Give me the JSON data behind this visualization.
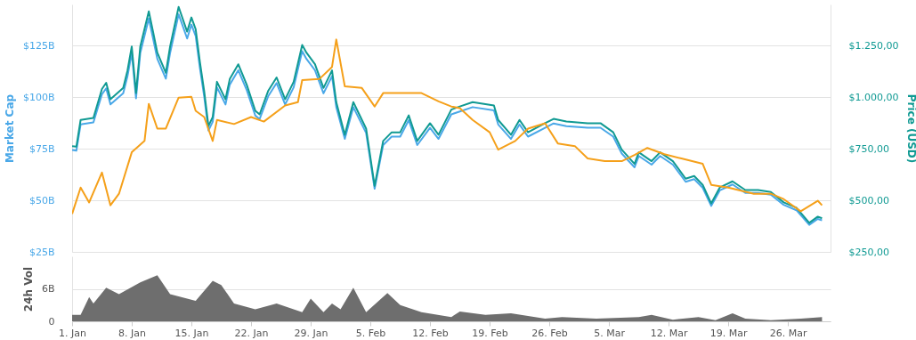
{
  "chart_data": [
    {
      "type": "line",
      "ylabel": "Market Cap",
      "y2label": "Price (USD)",
      "grid": "y",
      "tick_labels": "y",
      "xlim": [
        "--01-01",
        "--03-31"
      ],
      "ylim": [
        25,
        145
      ],
      "yticks": [
        {
          "value": 25,
          "label": "$25B"
        },
        {
          "value": 50,
          "label": "$50B"
        },
        {
          "value": 75,
          "label": "$75B"
        },
        {
          "value": 100,
          "label": "$100B"
        },
        {
          "value": 125,
          "label": "$125B"
        }
      ],
      "y2lim": [
        250,
        1450
      ],
      "y2ticks": [
        {
          "value": 250,
          "label": "$250,00"
        },
        {
          "value": 500,
          "label": "$500,00"
        },
        {
          "value": 750,
          "label": "$750,00"
        },
        {
          "value": 1000,
          "label": "$1.000,00"
        },
        {
          "value": 1250,
          "label": "$1.250,00"
        }
      ],
      "x": [
        "--01-01",
        "--01-01T12:00",
        "--01-02",
        "--01-03T12:00",
        "--01-04T12:00",
        "--01-05",
        "--01-05T12:00",
        "--01-07",
        "--01-07T12:00",
        "--01-08",
        "--01-08T12:00",
        "--01-09",
        "--01-10",
        "--01-10T12:00",
        "--01-11",
        "--01-12",
        "--01-12T12:00",
        "--01-13T12:00",
        "--01-14T12:00",
        "--01-15",
        "--01-15T12:00",
        "--01-16",
        "--01-16T12:00",
        "--01-17",
        "--01-17T12:00",
        "--01-18",
        "--01-19",
        "--01-19T12:00",
        "--01-20T12:00",
        "--01-21T12:00",
        "--01-22T12:00",
        "--01-23",
        "--01-24",
        "--01-25",
        "--01-26",
        "--01-27",
        "--01-28",
        "--01-28T12:00",
        "--01-29T12:00",
        "--01-30T12:00",
        "--01-31T12:00",
        "--02-01",
        "--02-02",
        "--02-03",
        "--02-04T12:00",
        "--02-05T12:00",
        "--02-06T12:00",
        "--02-07T12:00",
        "--02-08T12:00",
        "--02-09T12:00",
        "--02-10T12:00",
        "--02-12",
        "--02-13",
        "--02-14T12:00",
        "--02-15T12:00",
        "--02-17",
        "--02-19T12:00",
        "--02-20",
        "--02-21T12:00",
        "--02-22T12:00",
        "--02-23T12:00",
        "--02-25T12:00",
        "--02-26T12:00",
        "--02-28",
        "--03-02T12:00",
        "--03-04",
        "--03-05T12:00",
        "--03-06T12:00",
        "--03-08",
        "--03-08T12:00",
        "--03-10",
        "--03-11",
        "--03-12T12:00",
        "--03-14",
        "--03-15",
        "--03-16",
        "--03-17",
        "--03-18",
        "--03-19T12:00",
        "--03-21",
        "--03-22T12:00",
        "--03-24",
        "--03-25T12:00",
        "--03-27",
        "--03-28T12:00",
        "--03-29T12:00",
        "--03-30"
      ],
      "series": [
        {
          "color": "#4aa8e8",
          "values": [
            74.4,
            74.1,
            86.8,
            87.8,
            101.4,
            104.3,
            96.5,
            101.9,
            110.2,
            121.5,
            99.5,
            121.5,
            138.2,
            128.5,
            118.6,
            109.0,
            121.5,
            140.2,
            128.5,
            135.2,
            129.7,
            114.1,
            100.4,
            83.9,
            88.1,
            104.8,
            96.5,
            106.1,
            113.1,
            103.4,
            91.1,
            89.4,
            100.4,
            106.9,
            96.5,
            104.8,
            122.3,
            118.6,
            113.1,
            101.9,
            110.2,
            95.2,
            79.8,
            95.2,
            82.7,
            55.6,
            76.8,
            80.9,
            80.9,
            88.9,
            76.8,
            85.2,
            79.8,
            91.7,
            93.1,
            95.2,
            93.6,
            86.8,
            79.8,
            86.8,
            80.9,
            85.2,
            87.3,
            86.0,
            85.2,
            85.2,
            80.9,
            72.7,
            66.0,
            71.5,
            67.3,
            71.5,
            67.3,
            59.0,
            60.3,
            56.1,
            47.3,
            54.8,
            57.7,
            53.6,
            53.6,
            52.7,
            47.8,
            45.2,
            38.1,
            41.0,
            40.3
          ]
        },
        {
          "color": "#109a93",
          "axis": "y2",
          "values": [
            763,
            760,
            890,
            900,
            1040,
            1070,
            990,
            1045,
            1130,
            1246,
            1020,
            1246,
            1417,
            1318,
            1216,
            1118,
            1246,
            1438,
            1318,
            1387,
            1330,
            1170,
            1030,
            860,
            904,
            1075,
            990,
            1088,
            1160,
            1060,
            934,
            917,
            1030,
            1096,
            990,
            1075,
            1254,
            1216,
            1160,
            1045,
            1130,
            976,
            818,
            976,
            848,
            570,
            788,
            830,
            830,
            912,
            788,
            874,
            818,
            940,
            955,
            976,
            960,
            890,
            818,
            890,
            830,
            874,
            895,
            882,
            874,
            874,
            830,
            746,
            677,
            733,
            690,
            733,
            690,
            605,
            618,
            575,
            485,
            562,
            592,
            550,
            550,
            540,
            490,
            464,
            391,
            421,
            413
          ]
        },
        {
          "color": "#f5a01a",
          "x": [
            "--01-01",
            "--01-02",
            "--01-03",
            "--01-04T12:00",
            "--01-05T12:00",
            "--01-06T12:00",
            "--01-08",
            "--01-09T12:00",
            "--01-10",
            "--01-11",
            "--01-12",
            "--01-13T12:00",
            "--01-15",
            "--01-15T12:00",
            "--01-16T12:00",
            "--01-17T12:00",
            "--01-18",
            "--01-20",
            "--01-22",
            "--01-23T12:00",
            "--01-26",
            "--01-27T12:00",
            "--01-28",
            "--01-30",
            "--01-31T12:00",
            "--02-01",
            "--02-02",
            "--02-04",
            "--02-05T12:00",
            "--02-06T12:00",
            "--02-08T12:00",
            "--02-11",
            "--02-13",
            "--02-14T12:00",
            "--02-15T12:00",
            "--02-17",
            "--02-19",
            "--02-20",
            "--02-22",
            "--02-23T12:00",
            "--02-25T12:00",
            "--02-27",
            "--03-01",
            "--03-02T12:00",
            "--03-04T12:00",
            "--03-06T12:00",
            "--03-08",
            "--03-09T12:00",
            "--03-11T12:00",
            "--03-13T12:00",
            "--03-16",
            "--03-17",
            "--03-19",
            "--03-22",
            "--03-24",
            "--03-25T12:00",
            "--03-27T12:00",
            "--03-29T12:00",
            "--03-30"
          ],
          "values": [
            43.4,
            56.2,
            49,
            63.5,
            47.6,
            53.2,
            73.3,
            78.8,
            96.8,
            84.8,
            84.8,
            99.8,
            100.2,
            93.4,
            90.4,
            78.8,
            89,
            87,
            90.4,
            88.2,
            96,
            97.6,
            108.3,
            108.8,
            114.7,
            128,
            105.3,
            104.5,
            95.5,
            102,
            102,
            102,
            98,
            95.5,
            94.7,
            89,
            83,
            74.6,
            78.8,
            84.8,
            87.4,
            77.6,
            76.3,
            70.3,
            69,
            69,
            72,
            75.4,
            72.4,
            70.3,
            67.7,
            57.5,
            56.2,
            53.2,
            53.2,
            50.6,
            44.7,
            49.8,
            47.6
          ]
        }
      ]
    },
    {
      "type": "area",
      "ylabel": "24h Vol",
      "grid": "y",
      "xlim": [
        "--01-01",
        "--03-31"
      ],
      "xticks": [
        {
          "value": "--01-01",
          "label": "1. Jan"
        },
        {
          "value": "--01-08",
          "label": "8. Jan"
        },
        {
          "value": "--01-15",
          "label": "15. Jan"
        },
        {
          "value": "--01-22",
          "label": "22. Jan"
        },
        {
          "value": "--01-29",
          "label": "29. Jan"
        },
        {
          "value": "--02-05",
          "label": "5. Feb"
        },
        {
          "value": "--02-12",
          "label": "12. Feb"
        },
        {
          "value": "--02-19",
          "label": "19. Feb"
        },
        {
          "value": "--02-26",
          "label": "26. Feb"
        },
        {
          "value": "--03-05",
          "label": "5. Mar"
        },
        {
          "value": "--03-12",
          "label": "12. Mar"
        },
        {
          "value": "--03-19",
          "label": "19. Mar"
        },
        {
          "value": "--03-26",
          "label": "26. Mar"
        }
      ],
      "ylim": [
        0,
        12
      ],
      "yticks": [
        0,
        {
          "value": 6,
          "label": "6B"
        }
      ],
      "x": [
        "--01-01",
        "--01-02",
        "--01-03",
        "--01-03T12:00",
        "--01-05",
        "--01-06T12:00",
        "--01-09",
        "--01-11",
        "--01-12T12:00",
        "--01-15T12:00",
        "--01-17T12:00",
        "--01-18T12:00",
        "--01-20",
        "--01-22T12:00",
        "--01-25",
        "--01-28",
        "--01-29",
        "--01-30T12:00",
        "--01-31T12:00",
        "--02-01T12:00",
        "--02-03",
        "--02-04T12:00",
        "--02-07",
        "--02-08T12:00",
        "--02-11",
        "--02-14T12:00",
        "--02-15T12:00",
        "--02-18T12:00",
        "--02-21T12:00",
        "--02-25T12:00",
        "--02-27T12:00",
        "--03-03T12:00",
        "--03-08T12:00",
        "--03-10",
        "--03-12T12:00",
        "--03-15T12:00",
        "--03-17T12:00",
        "--03-19T12:00",
        "--03-21",
        "--03-24",
        "--03-27T12:00",
        "--03-30"
      ],
      "series": [
        {
          "color": "#6e6e6e",
          "values": [
            1.2,
            1.2,
            4.5,
            3.3,
            6.2,
            5,
            7.2,
            8.5,
            5,
            3.8,
            7.5,
            6.7,
            3.3,
            2.2,
            3.3,
            1.7,
            4.2,
            1.7,
            3.3,
            2.2,
            6.2,
            1.7,
            5.2,
            3,
            1.7,
            0.8,
            1.8,
            1.2,
            1.5,
            0.5,
            0.8,
            0.5,
            0.8,
            1.2,
            0.3,
            0.8,
            0.2,
            1.5,
            0.5,
            0.2,
            0.5,
            0.8
          ]
        }
      ]
    }
  ]
}
